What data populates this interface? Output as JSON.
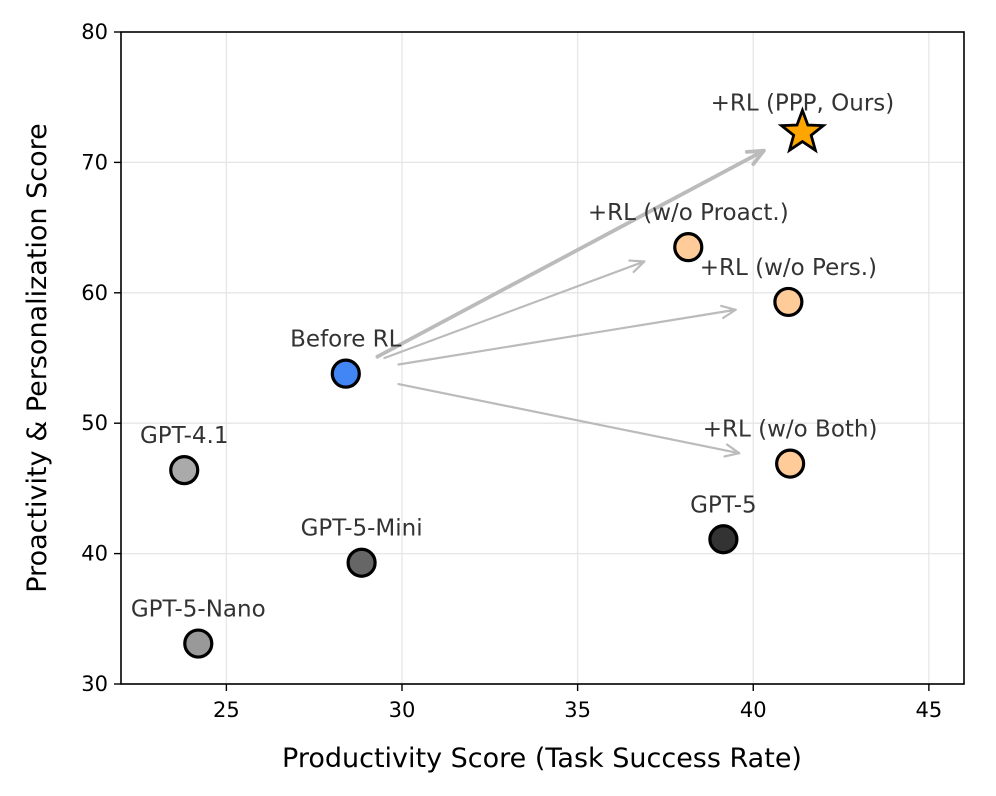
{
  "chart_data": {
    "type": "scatter",
    "title": "",
    "xlabel": "Productivity Score (Task Success Rate)",
    "ylabel": "Proactivity & Personalization Score",
    "xlim": [
      22,
      46
    ],
    "ylim": [
      30,
      80
    ],
    "xticks": [
      25,
      30,
      35,
      40,
      45
    ],
    "yticks": [
      30,
      40,
      50,
      60,
      70,
      80
    ],
    "grid": true,
    "points": [
      {
        "name": "GPT-4.1",
        "x": 23.8,
        "y": 46.4,
        "color": "#aaaaaa",
        "marker": "circle"
      },
      {
        "name": "GPT-5-Mini",
        "x": 28.85,
        "y": 39.3,
        "color": "#666666",
        "marker": "circle"
      },
      {
        "name": "GPT-5-Nano",
        "x": 24.2,
        "y": 33.1,
        "color": "#999999",
        "marker": "circle"
      },
      {
        "name": "GPT-5",
        "x": 39.15,
        "y": 41.1,
        "color": "#333333",
        "marker": "circle"
      },
      {
        "name": "Before RL",
        "x": 28.4,
        "y": 53.8,
        "color": "#4285f4",
        "marker": "circle"
      },
      {
        "name": "+RL (w/o Proact.)",
        "x": 38.15,
        "y": 63.5,
        "color": "#ffcc99",
        "marker": "circle"
      },
      {
        "name": "+RL (w/o Pers.)",
        "x": 41.0,
        "y": 59.3,
        "color": "#ffcc99",
        "marker": "circle"
      },
      {
        "name": "+RL (w/o Both)",
        "x": 41.05,
        "y": 46.9,
        "color": "#ffcc99",
        "marker": "circle"
      },
      {
        "name": "+RL (PPP, Ours)",
        "x": 41.4,
        "y": 72.3,
        "color": "#ffa500",
        "marker": "star"
      }
    ],
    "arrows": [
      {
        "from": [
          29.3,
          55.1
        ],
        "to": [
          40.3,
          70.9
        ],
        "color": "#bbbbbb",
        "emphasis": true
      },
      {
        "from": [
          29.5,
          55.0
        ],
        "to": [
          36.9,
          62.4
        ],
        "color": "#bbbbbb",
        "emphasis": false
      },
      {
        "from": [
          29.9,
          54.5
        ],
        "to": [
          39.5,
          58.7
        ],
        "color": "#bbbbbb",
        "emphasis": false
      },
      {
        "from": [
          29.9,
          53.0
        ],
        "to": [
          39.6,
          47.7
        ],
        "color": "#bbbbbb",
        "emphasis": false
      }
    ]
  }
}
